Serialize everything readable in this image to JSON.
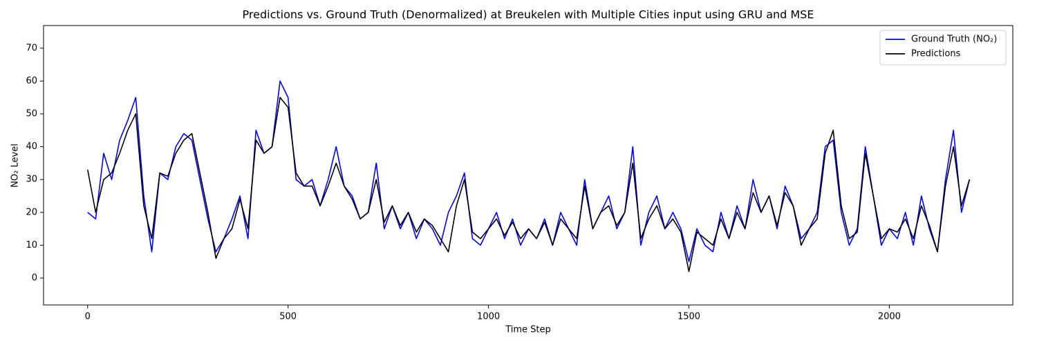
{
  "chart_data": {
    "type": "line",
    "title": "Predictions vs. Ground Truth (Denormalized) at Breukelen with Multiple Cities input using GRU and MSE",
    "xlabel": "Time Step",
    "ylabel": "NO₂ Level",
    "x": [
      0,
      20,
      40,
      60,
      80,
      100,
      120,
      140,
      160,
      180,
      200,
      220,
      240,
      260,
      280,
      300,
      320,
      340,
      360,
      380,
      400,
      420,
      440,
      460,
      480,
      500,
      520,
      540,
      560,
      580,
      600,
      620,
      640,
      660,
      680,
      700,
      720,
      740,
      760,
      780,
      800,
      820,
      840,
      860,
      880,
      900,
      920,
      940,
      960,
      980,
      1000,
      1020,
      1040,
      1060,
      1080,
      1100,
      1120,
      1140,
      1160,
      1180,
      1200,
      1220,
      1240,
      1260,
      1280,
      1300,
      1320,
      1340,
      1360,
      1380,
      1400,
      1420,
      1440,
      1460,
      1480,
      1500,
      1520,
      1540,
      1560,
      1580,
      1600,
      1620,
      1640,
      1660,
      1680,
      1700,
      1720,
      1740,
      1760,
      1780,
      1800,
      1820,
      1840,
      1860,
      1880,
      1900,
      1920,
      1940,
      1960,
      1980,
      2000,
      2020,
      2040,
      2060,
      2080,
      2100,
      2120,
      2140,
      2160,
      2180,
      2200
    ],
    "series": [
      {
        "name": "Ground Truth (NO₂)",
        "color": "#0000ff",
        "values": [
          20,
          18,
          38,
          30,
          42,
          48,
          55,
          25,
          8,
          32,
          30,
          40,
          44,
          42,
          30,
          18,
          8,
          12,
          18,
          25,
          12,
          45,
          38,
          40,
          60,
          55,
          30,
          28,
          30,
          22,
          30,
          40,
          28,
          25,
          18,
          20,
          35,
          15,
          22,
          15,
          20,
          12,
          18,
          15,
          10,
          20,
          25,
          32,
          12,
          10,
          15,
          20,
          12,
          18,
          10,
          15,
          12,
          18,
          10,
          20,
          15,
          10,
          30,
          15,
          20,
          25,
          15,
          20,
          40,
          10,
          20,
          25,
          15,
          20,
          15,
          5,
          15,
          10,
          8,
          20,
          12,
          22,
          15,
          30,
          20,
          25,
          15,
          28,
          22,
          12,
          15,
          20,
          40,
          42,
          20,
          10,
          15,
          40,
          25,
          10,
          15,
          12,
          20,
          10,
          25,
          15,
          8,
          30,
          45,
          20,
          30
        ]
      },
      {
        "name": "Predictions",
        "color": "#000000",
        "values": [
          33,
          20,
          30,
          32,
          38,
          45,
          50,
          22,
          12,
          32,
          31,
          38,
          42,
          44,
          32,
          20,
          6,
          12,
          15,
          24,
          15,
          42,
          38,
          40,
          55,
          52,
          32,
          28,
          28,
          22,
          28,
          35,
          28,
          24,
          18,
          20,
          30,
          17,
          22,
          16,
          20,
          14,
          18,
          16,
          12,
          8,
          22,
          30,
          14,
          12,
          15,
          18,
          13,
          17,
          12,
          15,
          12,
          17,
          10,
          18,
          15,
          12,
          28,
          15,
          20,
          22,
          16,
          20,
          35,
          12,
          18,
          22,
          15,
          18,
          14,
          2,
          14,
          12,
          10,
          18,
          12,
          20,
          15,
          26,
          20,
          25,
          16,
          26,
          22,
          10,
          15,
          18,
          38,
          45,
          22,
          12,
          14,
          38,
          25,
          12,
          15,
          14,
          18,
          12,
          22,
          16,
          8,
          28,
          40,
          22,
          30
        ]
      }
    ],
    "xlim": [
      -110,
      2308
    ],
    "ylim": [
      -8.2,
      76.9
    ],
    "xticks": [
      0,
      500,
      1000,
      1500,
      2000
    ],
    "yticks": [
      0,
      10,
      20,
      30,
      40,
      50,
      60,
      70
    ],
    "grid": false,
    "legend": "upper right"
  }
}
